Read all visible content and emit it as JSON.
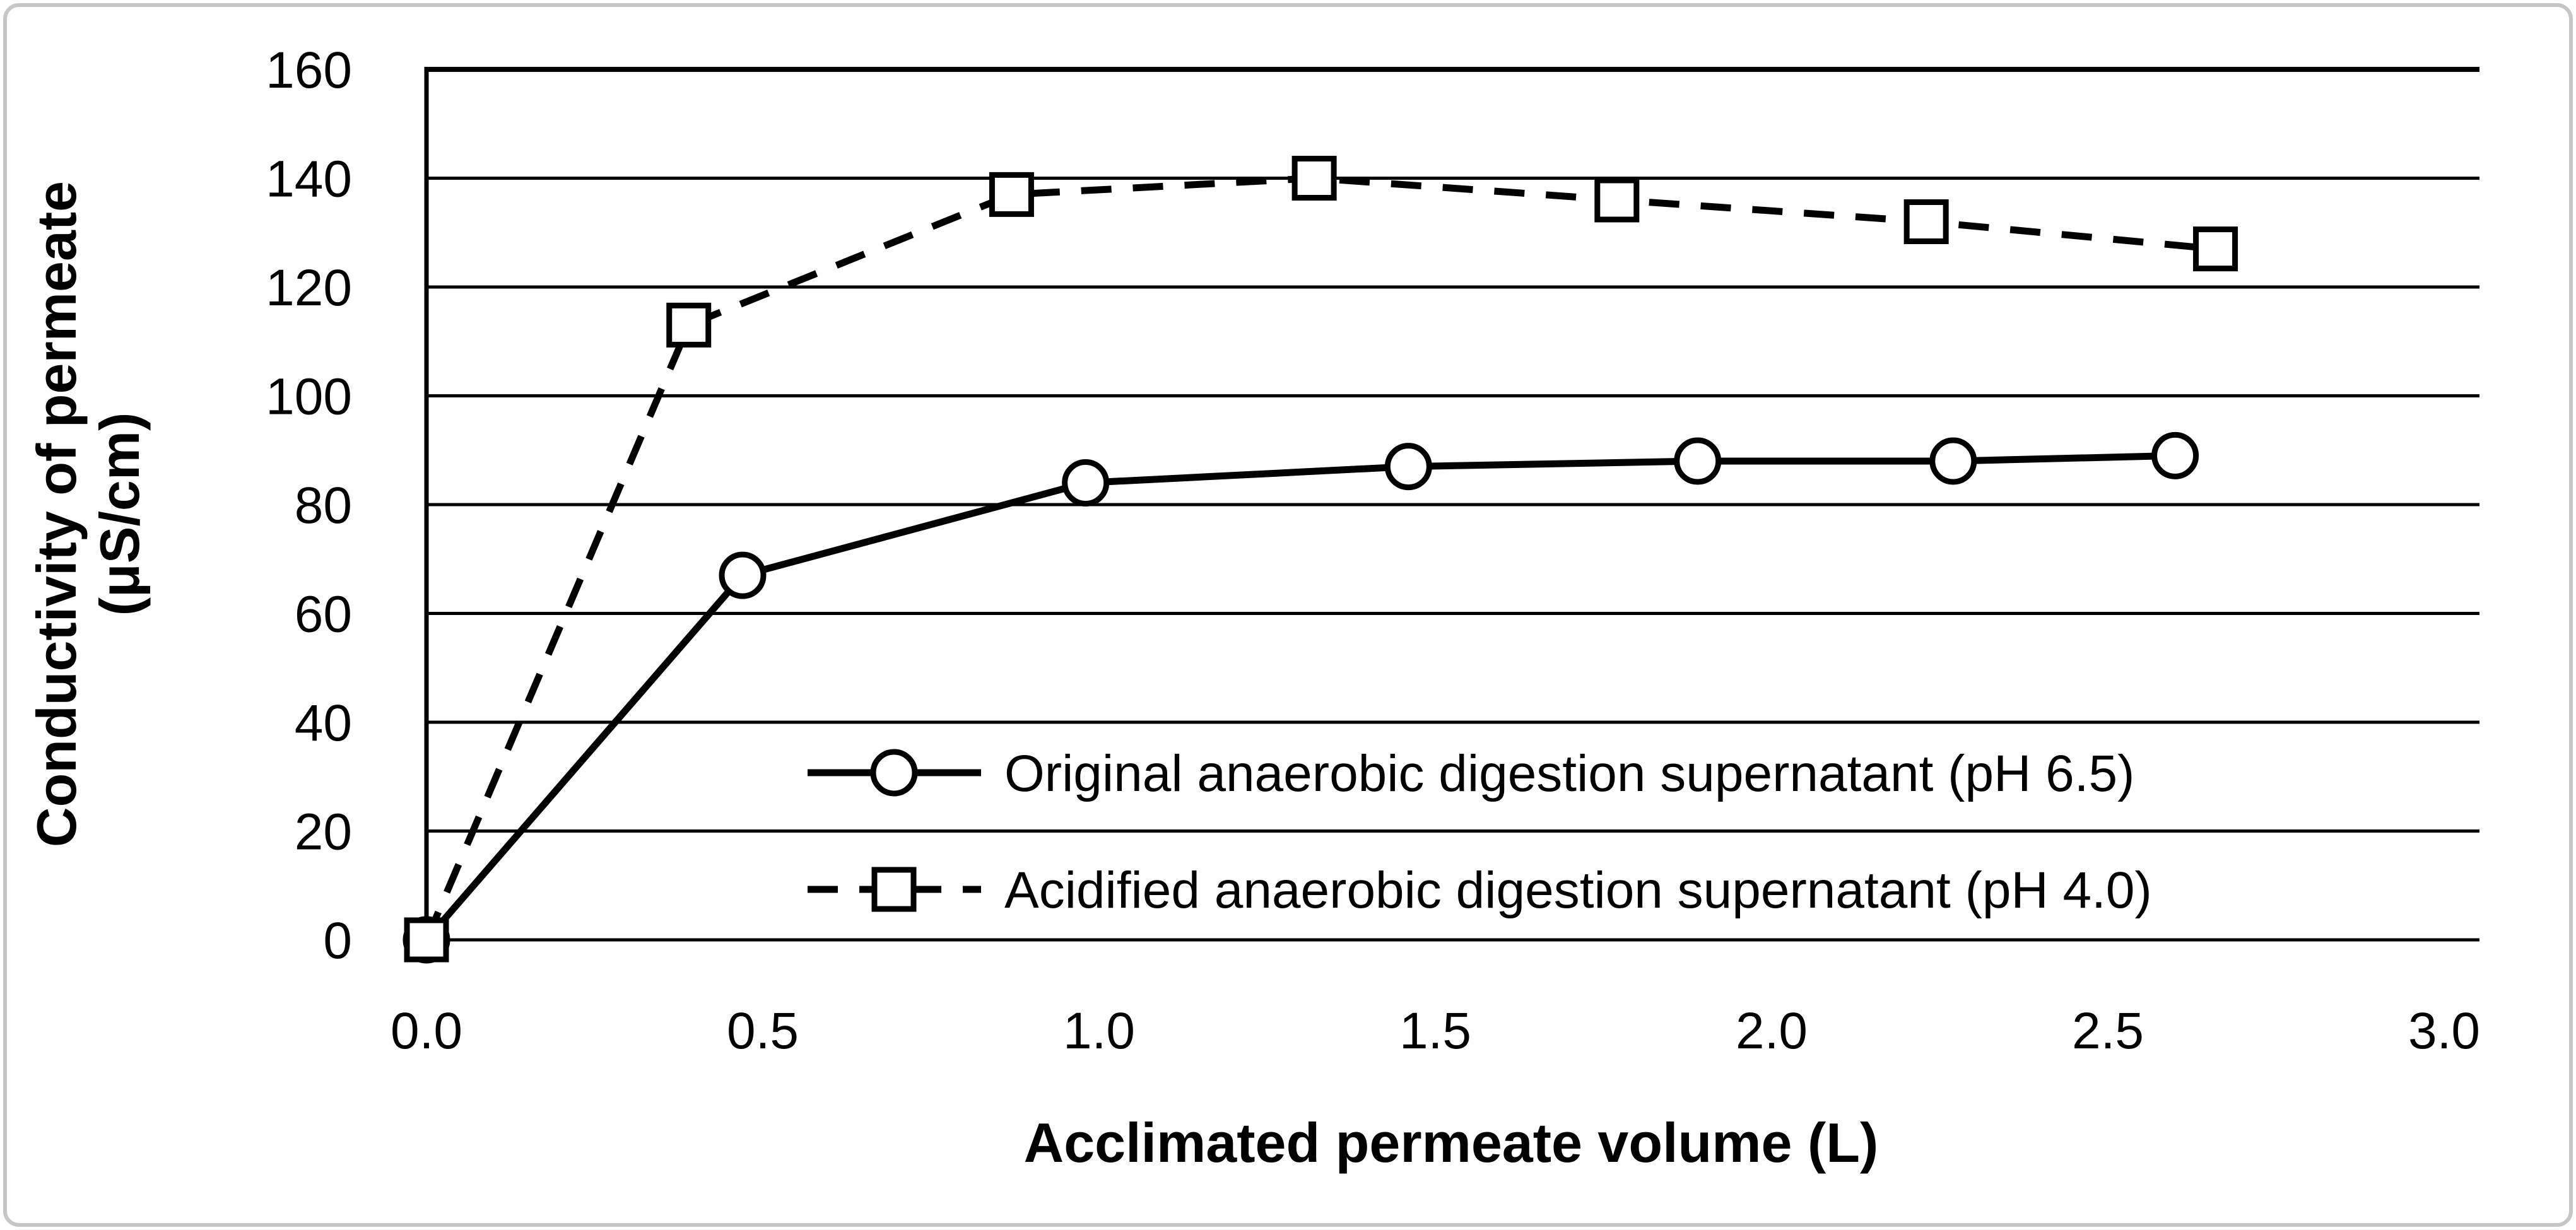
{
  "figure": {
    "background": "#ffffff",
    "border_color": "#c6c6c6",
    "ink_color": "#000000"
  },
  "chart_data": {
    "type": "line",
    "title": "",
    "xlabel": "Acclimated permeate volume (L)",
    "ylabel": "Conductivity of permeate (μS/cm)",
    "ylabel_lines": [
      "Conductivity of permeate",
      "(μS/cm)"
    ],
    "xlim": [
      0.0,
      3.0
    ],
    "ylim": [
      0,
      160
    ],
    "x_ticks": [
      "0.0",
      "0.5",
      "1.0",
      "1.5",
      "2.0",
      "2.5",
      "3.0"
    ],
    "x_tick_values": [
      0.0,
      0.5,
      1.0,
      1.5,
      2.0,
      2.5,
      3.0
    ],
    "y_ticks": [
      "0",
      "20",
      "40",
      "60",
      "80",
      "100",
      "120",
      "140",
      "160"
    ],
    "y_tick_values": [
      0,
      20,
      40,
      60,
      80,
      100,
      120,
      140,
      160
    ],
    "grid": "horizontal major gridlines every 20",
    "legend_position": "inside plot, lower right",
    "series": [
      {
        "name": "Original anaerobic digestion supernatant (pH 6.5)",
        "marker": "circle",
        "line_style": "solid",
        "color": "#000000",
        "x": [
          0.0,
          0.47,
          0.98,
          1.46,
          1.89,
          2.27,
          2.6
        ],
        "y": [
          0,
          67,
          84,
          87,
          88,
          88,
          89
        ]
      },
      {
        "name": "Acidified anaerobic digestion supernatant (pH 4.0)",
        "marker": "square",
        "line_style": "dashed",
        "color": "#000000",
        "x": [
          0.0,
          0.39,
          0.87,
          1.32,
          1.77,
          2.23,
          2.66
        ],
        "y": [
          0,
          113,
          137,
          140,
          136,
          132,
          127
        ]
      }
    ]
  }
}
